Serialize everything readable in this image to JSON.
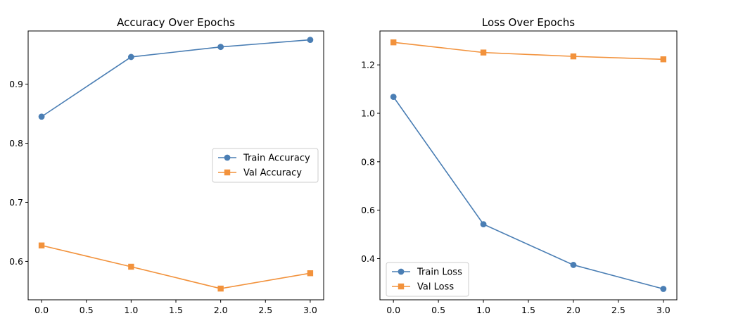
{
  "chart_data": [
    {
      "type": "line",
      "title": "Accuracy Over Epochs",
      "xlabel": "",
      "ylabel": "",
      "x": [
        0,
        1,
        2,
        3
      ],
      "xlim": [
        -0.15,
        3.15
      ],
      "ylim": [
        0.535,
        0.99
      ],
      "xticks": [
        0,
        0.5,
        1,
        1.5,
        2,
        2.5,
        3
      ],
      "xtick_labels": [
        "0.0",
        "0.5",
        "1.0",
        "1.5",
        "2.0",
        "2.5",
        "3.0"
      ],
      "yticks": [
        0.6,
        0.7,
        0.8,
        0.9
      ],
      "ytick_labels": [
        "0.6",
        "0.7",
        "0.8",
        "0.9"
      ],
      "grid": false,
      "legend_position": "center-right",
      "series": [
        {
          "name": "Train Accuracy",
          "values": [
            0.845,
            0.946,
            0.963,
            0.975
          ],
          "color": "#4a7eb4",
          "marker": "circle"
        },
        {
          "name": "Val Accuracy",
          "values": [
            0.627,
            0.591,
            0.554,
            0.58
          ],
          "color": "#f2923c",
          "marker": "square"
        }
      ]
    },
    {
      "type": "line",
      "title": "Loss Over Epochs",
      "xlabel": "",
      "ylabel": "",
      "x": [
        0,
        1,
        2,
        3
      ],
      "xlim": [
        -0.15,
        3.15
      ],
      "ylim": [
        0.23,
        1.34
      ],
      "xticks": [
        0,
        0.5,
        1,
        1.5,
        2,
        2.5,
        3
      ],
      "xtick_labels": [
        "0.0",
        "0.5",
        "1.0",
        "1.5",
        "2.0",
        "2.5",
        "3.0"
      ],
      "yticks": [
        0.4,
        0.6,
        0.8,
        1.0,
        1.2
      ],
      "ytick_labels": [
        "0.4",
        "0.6",
        "0.8",
        "1.0",
        "1.2"
      ],
      "grid": false,
      "legend_position": "bottom-left",
      "series": [
        {
          "name": "Train Loss",
          "values": [
            1.068,
            0.542,
            0.374,
            0.275
          ],
          "color": "#4a7eb4",
          "marker": "circle"
        },
        {
          "name": "Val Loss",
          "values": [
            1.293,
            1.251,
            1.235,
            1.223
          ],
          "color": "#f2923c",
          "marker": "square"
        }
      ]
    }
  ]
}
